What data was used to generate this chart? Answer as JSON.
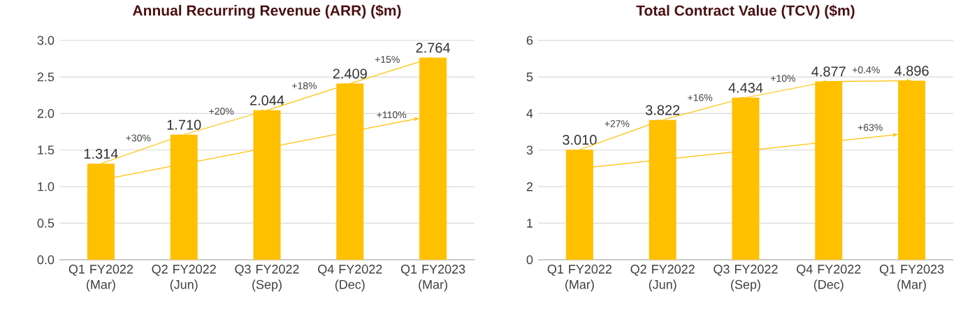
{
  "chart_data": [
    {
      "type": "bar",
      "title": "Annual Recurring Revenue (ARR) ($m)",
      "categories": [
        "Q1 FY2022 (Mar)",
        "Q2 FY2022 (Jun)",
        "Q3 FY2022 (Sep)",
        "Q4 FY2022 (Dec)",
        "Q1 FY2023 (Mar)"
      ],
      "values": [
        1.314,
        1.71,
        2.044,
        2.409,
        2.764
      ],
      "value_labels": [
        "1.314",
        "1.710",
        "2.044",
        "2.409",
        "2.764"
      ],
      "color": "#ffc000",
      "ylim": [
        0,
        3.0
      ],
      "yticks": [
        {
          "value": 0,
          "label": "0.0"
        },
        {
          "value": 0.5,
          "label": "0.5"
        },
        {
          "value": 1.0,
          "label": "1.0"
        },
        {
          "value": 1.5,
          "label": "1.5"
        },
        {
          "value": 2.0,
          "label": "2.0"
        },
        {
          "value": 2.5,
          "label": "2.5"
        },
        {
          "value": 3.0,
          "label": "3.0"
        }
      ],
      "annotations": [
        "+30%",
        "+20%",
        "+18%",
        "+15%",
        "+110%"
      ],
      "grid": "y"
    },
    {
      "type": "bar",
      "title": "Total Contract Value (TCV) ($m)",
      "categories": [
        "Q1 FY2022 (Mar)",
        "Q2 FY2022 (Jun)",
        "Q3 FY2022 (Sep)",
        "Q4 FY2022 (Dec)",
        "Q1 FY2023 (Mar)"
      ],
      "values": [
        3.01,
        3.822,
        4.434,
        4.877,
        4.896
      ],
      "value_labels": [
        "3.010",
        "3.822",
        "4.434",
        "4.877",
        "4.896"
      ],
      "color": "#ffc000",
      "ylim": [
        0,
        6
      ],
      "yticks": [
        0,
        1,
        2,
        3,
        4,
        5,
        6
      ],
      "annotations": [
        "+27%",
        "+16%",
        "+10%",
        "+0.4%",
        "+63%"
      ],
      "grid": "y"
    }
  ]
}
